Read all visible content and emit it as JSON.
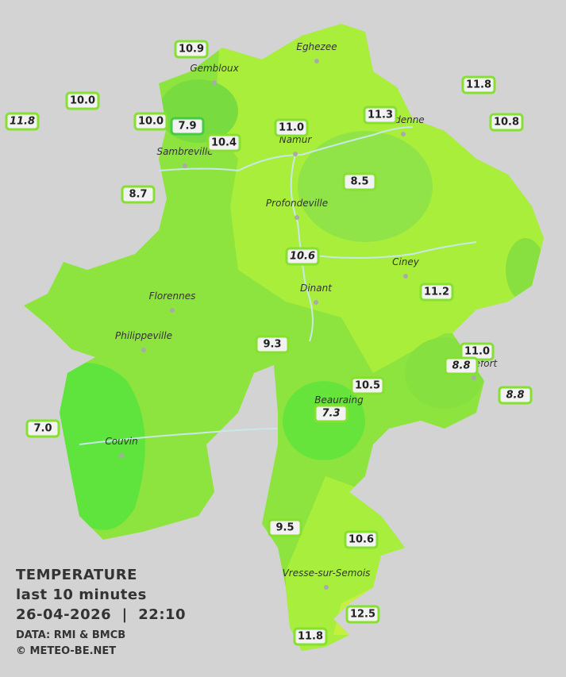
{
  "legend": {
    "title": "TEMPERATURE",
    "subtitle": "last 10 minutes",
    "datetime": "26-04-2026  |  22:10",
    "source": "DATA: RMI & BMCB",
    "copyright": "© METEO-BE.NET"
  },
  "cities": [
    "Eghezee",
    "Gembloux",
    "Andenne",
    "Namur",
    "Sambreville",
    "Profondeville",
    "Ciney",
    "Dinant",
    "Florennes",
    "Philippeville",
    "Rochefort",
    "Beauraing",
    "Couvin",
    "Vresse-sur-Semois"
  ],
  "stations": [
    "10.9",
    "10.0",
    "11.8",
    "10.0",
    "7.9",
    "10.4",
    "11.0",
    "11.3",
    "11.8",
    "10.8",
    "8.7",
    "8.5",
    "10.6",
    "11.2",
    "9.3",
    "11.0",
    "8.8",
    "8.8",
    "10.5",
    "7.3",
    "7.0",
    "9.5",
    "10.6",
    "12.5",
    "11.8"
  ]
}
